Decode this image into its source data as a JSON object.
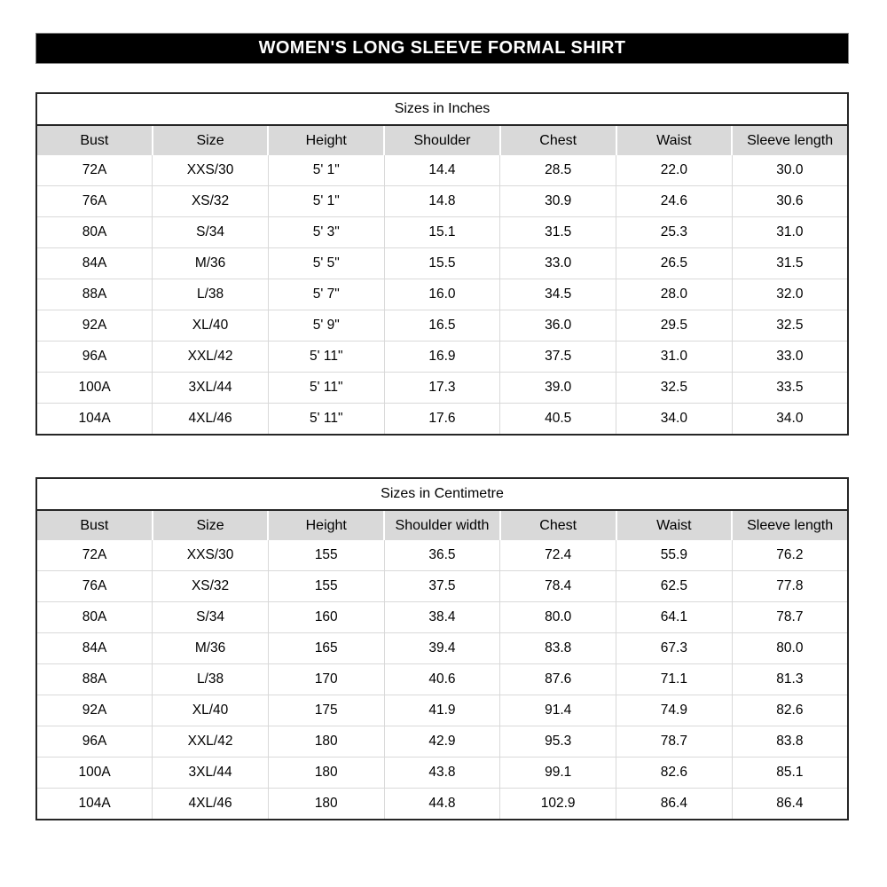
{
  "title": "WOMEN'S LONG SLEEVE FORMAL SHIRT",
  "colors": {
    "title_bar_bg": "#000000",
    "title_bar_text": "#ffffff",
    "title_bar_border": "#7f7f7f",
    "header_row_bg": "#d9d9d9",
    "grid_line": "#d9d9d9",
    "outer_border": "#262626"
  },
  "tables": [
    {
      "title": "Sizes in Inches",
      "columns": [
        "Bust",
        "Size",
        "Height",
        "Shoulder",
        "Chest",
        "Waist",
        "Sleeve length"
      ],
      "rows": [
        [
          "72A",
          "XXS/30",
          "5' 1\"",
          "14.4",
          "28.5",
          "22.0",
          "30.0"
        ],
        [
          "76A",
          "XS/32",
          "5' 1\"",
          "14.8",
          "30.9",
          "24.6",
          "30.6"
        ],
        [
          "80A",
          "S/34",
          "5' 3\"",
          "15.1",
          "31.5",
          "25.3",
          "31.0"
        ],
        [
          "84A",
          "M/36",
          "5' 5\"",
          "15.5",
          "33.0",
          "26.5",
          "31.5"
        ],
        [
          "88A",
          "L/38",
          "5' 7\"",
          "16.0",
          "34.5",
          "28.0",
          "32.0"
        ],
        [
          "92A",
          "XL/40",
          "5' 9\"",
          "16.5",
          "36.0",
          "29.5",
          "32.5"
        ],
        [
          "96A",
          "XXL/42",
          "5' 11\"",
          "16.9",
          "37.5",
          "31.0",
          "33.0"
        ],
        [
          "100A",
          "3XL/44",
          "5' 11\"",
          "17.3",
          "39.0",
          "32.5",
          "33.5"
        ],
        [
          "104A",
          "4XL/46",
          "5' 11\"",
          "17.6",
          "40.5",
          "34.0",
          "34.0"
        ]
      ]
    },
    {
      "title": "Sizes in Centimetre",
      "columns": [
        "Bust",
        "Size",
        "Height",
        "Shoulder width",
        "Chest",
        "Waist",
        "Sleeve length"
      ],
      "rows": [
        [
          "72A",
          "XXS/30",
          "155",
          "36.5",
          "72.4",
          "55.9",
          "76.2"
        ],
        [
          "76A",
          "XS/32",
          "155",
          "37.5",
          "78.4",
          "62.5",
          "77.8"
        ],
        [
          "80A",
          "S/34",
          "160",
          "38.4",
          "80.0",
          "64.1",
          "78.7"
        ],
        [
          "84A",
          "M/36",
          "165",
          "39.4",
          "83.8",
          "67.3",
          "80.0"
        ],
        [
          "88A",
          "L/38",
          "170",
          "40.6",
          "87.6",
          "71.1",
          "81.3"
        ],
        [
          "92A",
          "XL/40",
          "175",
          "41.9",
          "91.4",
          "74.9",
          "82.6"
        ],
        [
          "96A",
          "XXL/42",
          "180",
          "42.9",
          "95.3",
          "78.7",
          "83.8"
        ],
        [
          "100A",
          "3XL/44",
          "180",
          "43.8",
          "99.1",
          "82.6",
          "85.1"
        ],
        [
          "104A",
          "4XL/46",
          "180",
          "44.8",
          "102.9",
          "86.4",
          "86.4"
        ]
      ]
    }
  ]
}
